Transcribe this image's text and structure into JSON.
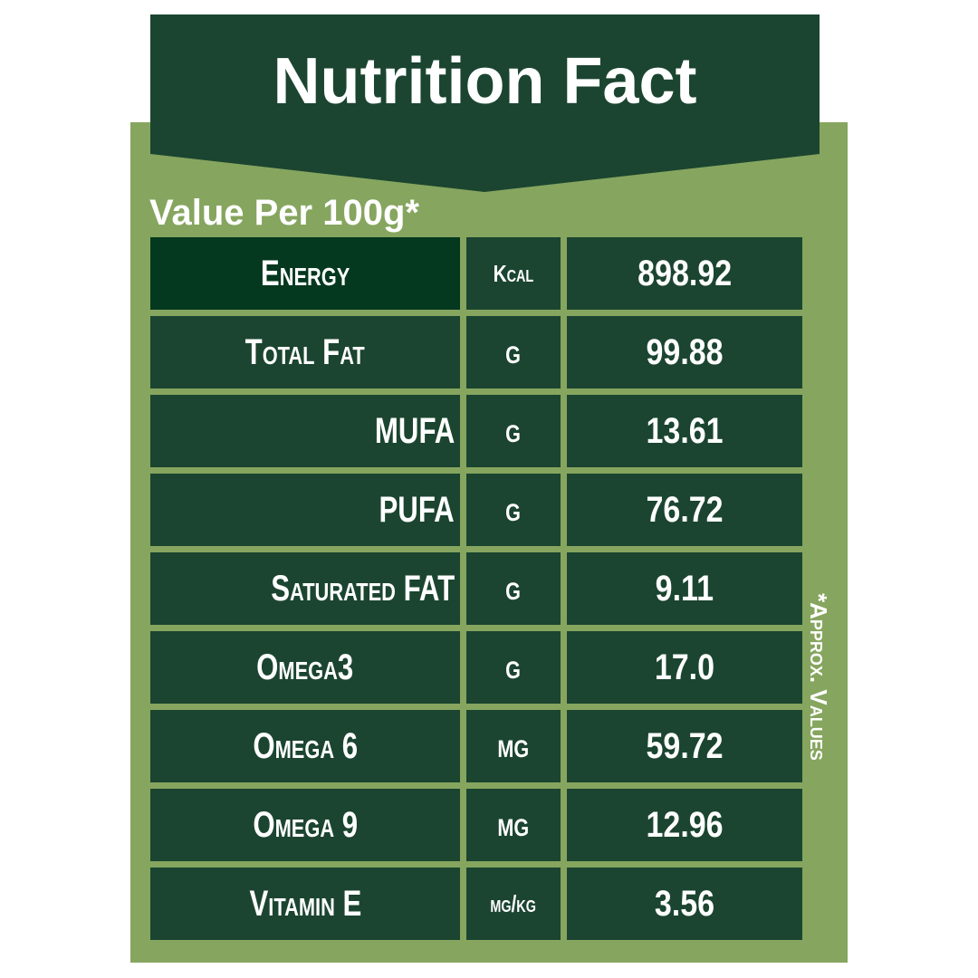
{
  "header": {
    "title": "Nutrition Fact",
    "subtitle": "Value Per 100g*"
  },
  "table": {
    "rows": [
      [
        "Energy",
        "Kcal",
        "898.92"
      ],
      [
        "Total Fat",
        "g",
        "99.88"
      ],
      [
        "MUFA",
        "g",
        "13.61"
      ],
      [
        "PUFA",
        "g",
        "76.72"
      ],
      [
        "Saturated FAT",
        "g",
        "9.11"
      ],
      [
        "Omega3",
        "g",
        "17.0"
      ],
      [
        "Omega 6",
        "mg",
        "59.72"
      ],
      [
        "Omega 9",
        "mg",
        "12.96"
      ],
      [
        "Vitamin E",
        "mg/kg",
        "3.56"
      ]
    ]
  },
  "footnote": "*Approx. Values"
}
